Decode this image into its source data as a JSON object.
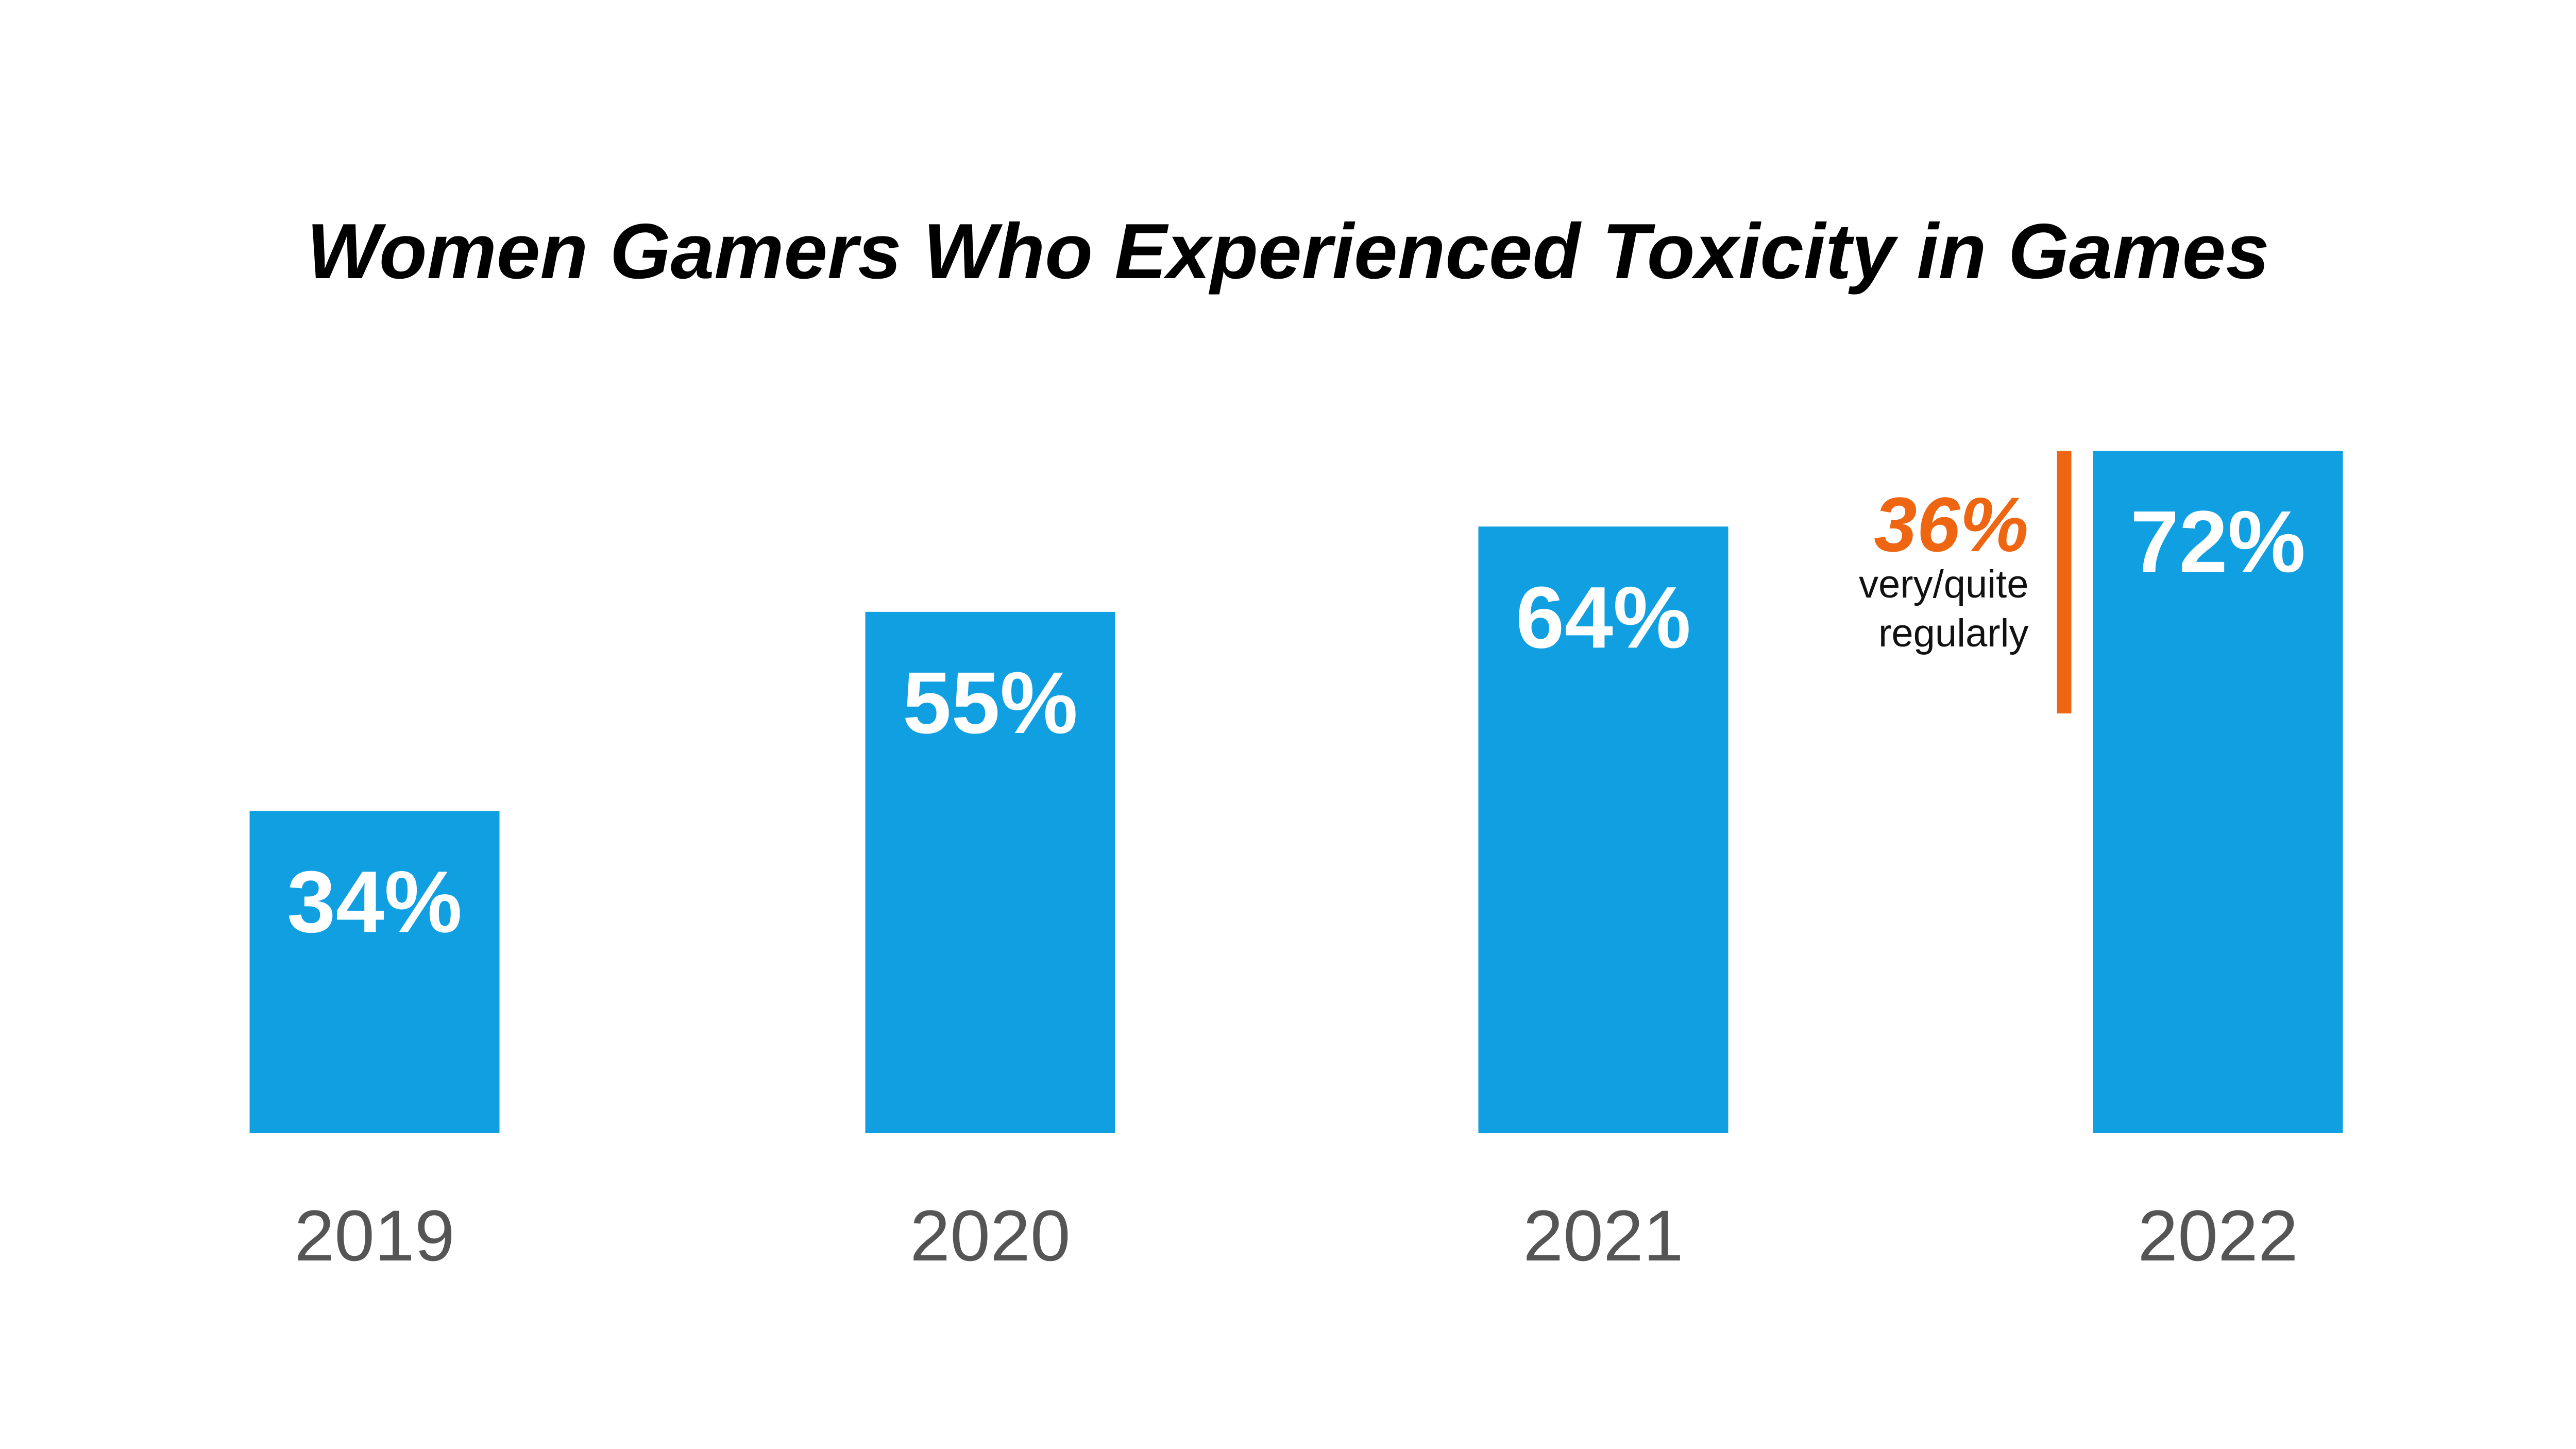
{
  "chart_data": {
    "type": "bar",
    "title": "Women Gamers Who Experienced Toxicity in Games",
    "xlabel": "",
    "ylabel": "",
    "categories": [
      "2019",
      "2020",
      "2021",
      "2022"
    ],
    "values": [
      34,
      55,
      64,
      72
    ],
    "value_labels": [
      "34%",
      "55%",
      "64%",
      "72%"
    ],
    "unit": "%",
    "ylim": [
      0,
      72
    ],
    "grid": false,
    "legend": "none",
    "annotation": {
      "category": "2022",
      "value": 36,
      "value_label": "36%",
      "text_line1": "very/quite",
      "text_line2": "regularly"
    }
  },
  "colors": {
    "bar": "#109FE1",
    "accent": "#EE6512",
    "title": "#000000",
    "tick_labels": "#555555",
    "bar_labels": "#FFFFFF",
    "background": "#FFFFFF"
  }
}
